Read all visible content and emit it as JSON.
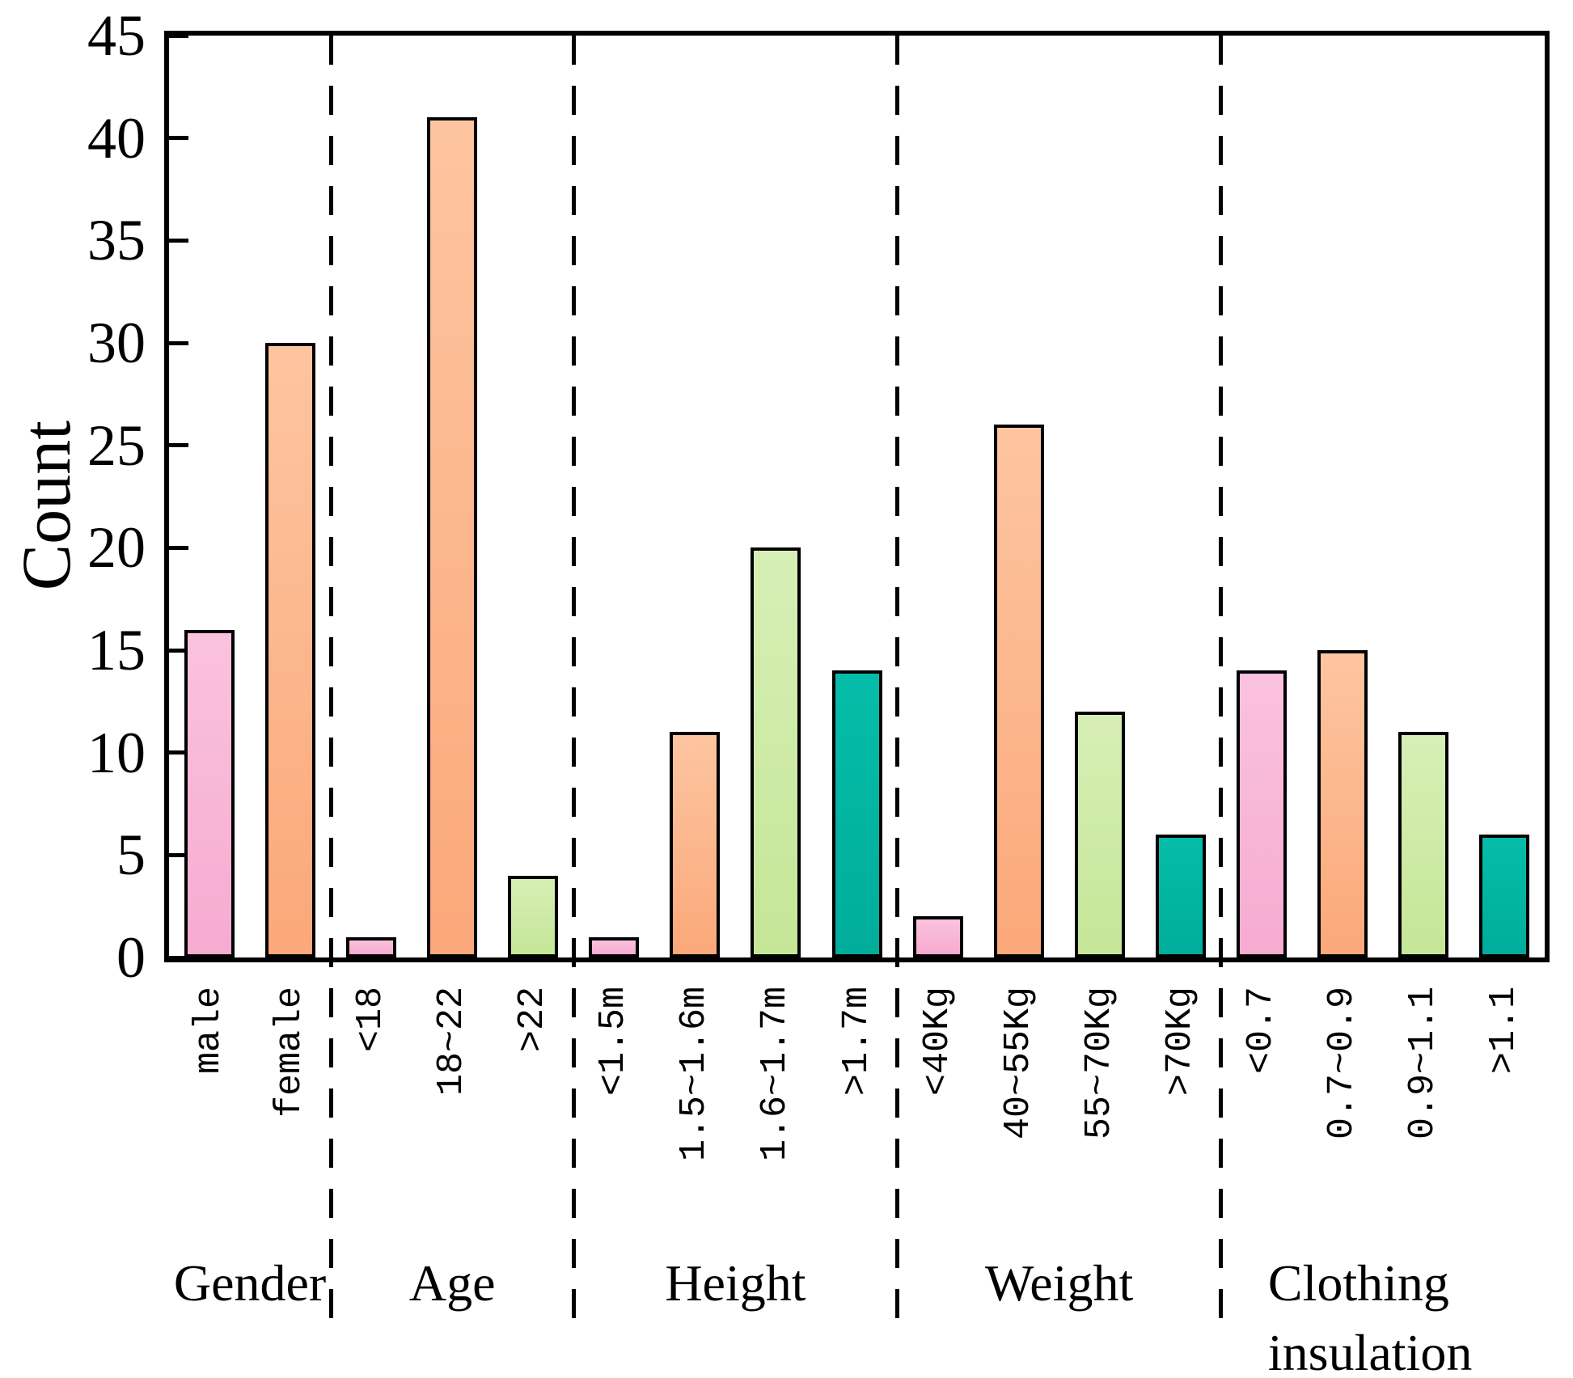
{
  "figure": {
    "background_color": "#FFFFFF",
    "frame_color": "#000000"
  },
  "chart_data": {
    "type": "bar",
    "title": "",
    "xlabel": "",
    "ylabel": "Count",
    "ylim": [
      0,
      45
    ],
    "yticks": [
      "0",
      "5",
      "10",
      "15",
      "20",
      "25",
      "30",
      "35",
      "40",
      "45"
    ],
    "grid": false,
    "legend": "none",
    "group_separator_style": "black dashed vertical lines",
    "groups": [
      {
        "name": "Gender",
        "name_lines": [
          "Gender"
        ],
        "categories": [
          "male",
          "female"
        ],
        "values": [
          16,
          30
        ],
        "colors": [
          "pink",
          "orange"
        ]
      },
      {
        "name": "Age",
        "name_lines": [
          "Age"
        ],
        "categories": [
          "<18",
          "18~22",
          ">22"
        ],
        "values": [
          1,
          41,
          4
        ],
        "colors": [
          "pink",
          "orange",
          "green"
        ]
      },
      {
        "name": "Height",
        "name_lines": [
          "Height"
        ],
        "categories": [
          "<1.5m",
          "1.5~1.6m",
          "1.6~1.7m",
          ">1.7m"
        ],
        "values": [
          1,
          11,
          20,
          14
        ],
        "colors": [
          "pink",
          "orange",
          "green",
          "teal"
        ]
      },
      {
        "name": "Weight",
        "name_lines": [
          "Weight"
        ],
        "categories": [
          "<40Kg",
          "40~55Kg",
          "55~70Kg",
          ">70Kg"
        ],
        "values": [
          2,
          26,
          12,
          6
        ],
        "colors": [
          "pink",
          "orange",
          "green",
          "teal"
        ]
      },
      {
        "name": "Clothing insulation",
        "name_lines": [
          "Clothing",
          "insulation"
        ],
        "categories": [
          "<0.7",
          "0.7~0.9",
          "0.9~1.1",
          ">1.1"
        ],
        "values": [
          14,
          15,
          11,
          6
        ],
        "colors": [
          "pink",
          "orange",
          "green",
          "teal"
        ]
      }
    ],
    "palette": {
      "pink": {
        "top": "#FAC2DE",
        "bottom": "#F6ABD0"
      },
      "orange": {
        "top": "#FDC5A0",
        "bottom": "#FBA87A"
      },
      "green": {
        "top": "#D7EFB6",
        "bottom": "#C5E697"
      },
      "teal": {
        "top": "#04BDA8",
        "bottom": "#00AD9A"
      }
    },
    "bar_border_color": "#000000"
  }
}
